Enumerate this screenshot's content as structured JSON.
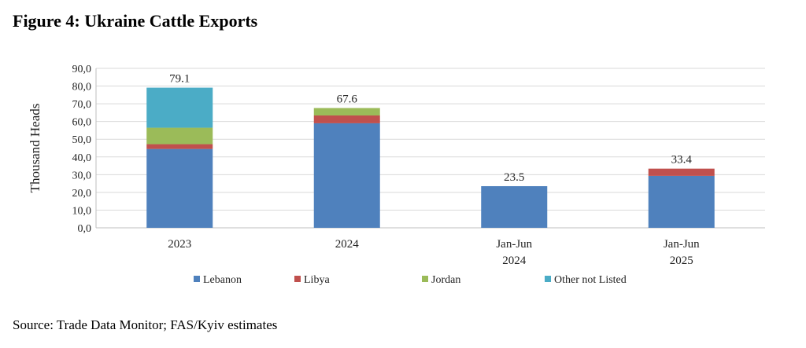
{
  "figure": {
    "title": "Figure 4: Ukraine Cattle Exports",
    "source": "Source: Trade Data Monitor; FAS/Kyiv estimates"
  },
  "chart_data": {
    "type": "bar",
    "stacked": true,
    "categories": [
      [
        "2023"
      ],
      [
        "2024"
      ],
      [
        "Jan-Jun",
        "2024"
      ],
      [
        "Jan-Jun",
        "2025"
      ]
    ],
    "series": [
      {
        "name": "Lebanon",
        "color": "#4f81bd",
        "values": [
          44.5,
          59.0,
          23.5,
          29.3
        ]
      },
      {
        "name": "Libya",
        "color": "#c0504d",
        "values": [
          2.7,
          4.4,
          0.0,
          4.1
        ]
      },
      {
        "name": "Jordan",
        "color": "#9bbb59",
        "values": [
          9.3,
          4.2,
          0.0,
          0.0
        ]
      },
      {
        "name": "Other not Listed",
        "color": "#4bacc6",
        "values": [
          22.6,
          0.0,
          0.0,
          0.0
        ]
      }
    ],
    "totals": [
      "79.1",
      "67.6",
      "23.5",
      "33.4"
    ],
    "ylabel": "Thousand Heads",
    "ylim": [
      0,
      90
    ],
    "yticks": [
      "0,0",
      "10,0",
      "20,0",
      "30,0",
      "40,0",
      "50,0",
      "60,0",
      "70,0",
      "80,0",
      "90,0"
    ],
    "grid": true,
    "legend_position": "bottom"
  }
}
